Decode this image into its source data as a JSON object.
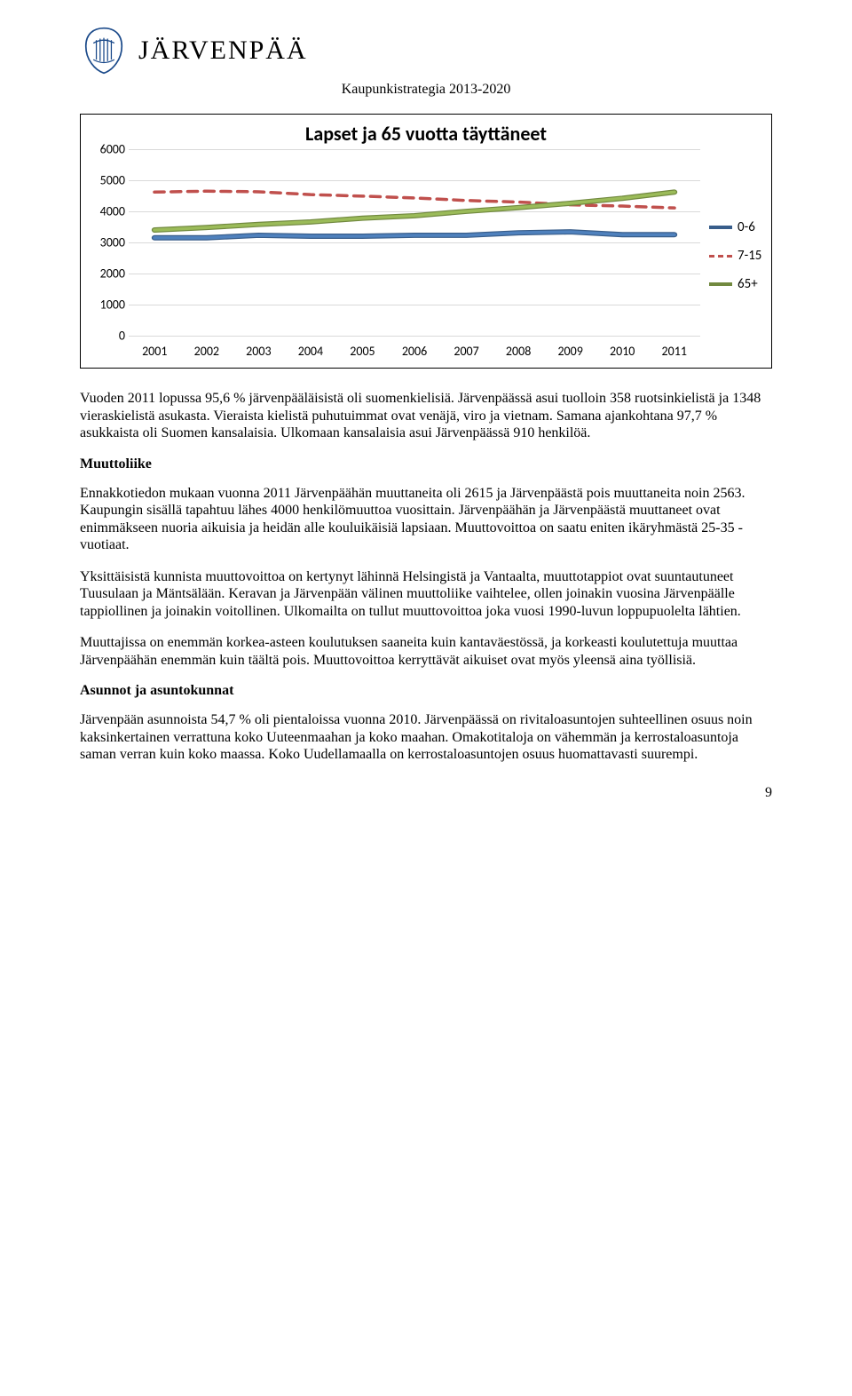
{
  "header": {
    "city_name": "JÄRVENPÄÄ",
    "doc_title": "Kaupunkistrategia 2013-2020"
  },
  "chart": {
    "type": "line",
    "title": "Lapset ja 65 vuotta täyttäneet",
    "title_fontsize": 22,
    "x_categories": [
      "2001",
      "2002",
      "2003",
      "2004",
      "2005",
      "2006",
      "2007",
      "2008",
      "2009",
      "2010",
      "2011"
    ],
    "ylim": [
      0,
      6000
    ],
    "ytick_step": 1000,
    "ytick_labels": [
      "0",
      "1000",
      "2000",
      "3000",
      "4000",
      "5000",
      "6000"
    ],
    "grid_color": "#d9d9d9",
    "background_color": "#ffffff",
    "axis_label_fontsize": 14,
    "line_width": 3.5,
    "series": [
      {
        "name": "0-6",
        "color": "#4f81bd",
        "dash": "solid",
        "outer_color": "#385d8a",
        "values": [
          3150,
          3150,
          3230,
          3200,
          3200,
          3230,
          3230,
          3310,
          3340,
          3250,
          3250
        ]
      },
      {
        "name": "7-15",
        "color": "#c0504d",
        "dash": "dashed",
        "values": [
          4620,
          4650,
          4630,
          4540,
          4490,
          4430,
          4350,
          4300,
          4210,
          4170,
          4110
        ]
      },
      {
        "name": "65+",
        "color": "#9bbb59",
        "dash": "solid",
        "outer_color": "#71893f",
        "values": [
          3400,
          3480,
          3580,
          3660,
          3780,
          3860,
          4000,
          4120,
          4260,
          4420,
          4620
        ]
      }
    ],
    "legend_position": "right"
  },
  "paragraphs": {
    "p1": "Vuoden 2011 lopussa 95,6 % järvenpääläisistä oli suomenkielisiä. Järvenpäässä asui tuolloin 358 ruotsinkielistä ja 1348 vieraskielistä asukasta. Vieraista kielistä puhutuimmat ovat venäjä, viro ja vietnam. Samana ajankohtana 97,7 % asukkaista oli Suomen kansalaisia. Ulkomaan kansalaisia asui Järvenpäässä 910 henkilöä.",
    "h_muuttoliike": "Muuttoliike",
    "p2": "Ennakkotiedon mukaan vuonna 2011 Järvenpäähän muuttaneita oli 2615 ja Järvenpäästä pois muuttaneita noin 2563. Kaupungin sisällä tapahtuu lähes 4000 henkilömuuttoa vuosittain. Järvenpäähän ja Järvenpäästä muuttaneet ovat enimmäkseen nuoria aikuisia ja heidän alle kouluikäisiä lapsiaan. Muuttovoittoa on saatu eniten ikäryhmästä 25-35 -vuotiaat.",
    "p3": "Yksittäisistä kunnista muuttovoittoa on kertynyt lähinnä Helsingistä ja Vantaalta, muuttotappiot ovat suuntautuneet Tuusulaan ja Mäntsälään. Keravan ja Järvenpään välinen muuttoliike vaihtelee, ollen joinakin vuosina Järvenpäälle tappiollinen ja joinakin voitollinen. Ulkomailta on tullut muuttovoittoa joka vuosi 1990-luvun loppupuolelta lähtien.",
    "p4": "Muuttajissa on enemmän korkea-asteen koulutuksen saaneita kuin kantaväestössä, ja korkeasti koulutettuja muuttaa Järvenpäähän enemmän kuin täältä pois. Muuttovoittoa kerryttävät aikuiset ovat myös yleensä aina työllisiä.",
    "h_asunnot": "Asunnot ja asuntokunnat",
    "p5": "Järvenpään asunnoista 54,7 % oli pientaloissa vuonna 2010. Järvenpäässä on rivitaloasuntojen suhteellinen osuus noin kaksinkertainen verrattuna koko Uuteenmaahan ja koko maahan. Omakotitaloja on vähemmän ja kerrostaloasuntoja saman verran kuin koko maassa. Koko Uudellamaalla on kerrostaloasuntojen osuus huomattavasti suurempi."
  },
  "page_number": "9"
}
